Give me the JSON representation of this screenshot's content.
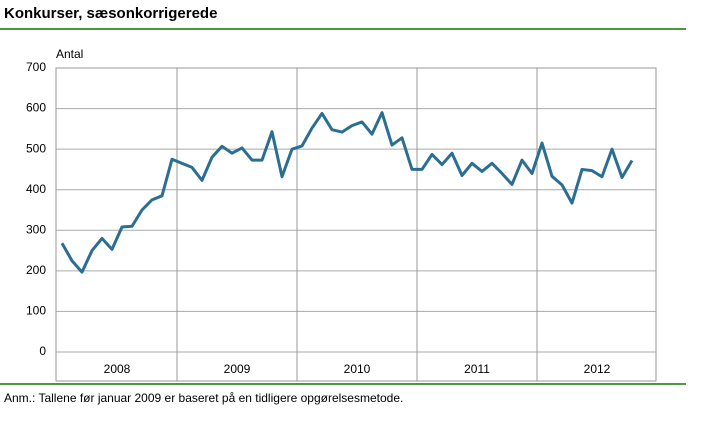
{
  "chart_data": {
    "type": "line",
    "title": "Konkurser, sæsonkorrigerede",
    "y_label": "Antal",
    "note": "Anm.: Tallene før januar 2009 er baseret på en tidligere opgørelsesmetode.",
    "categories": [
      null,
      null,
      null,
      null,
      null,
      null,
      null,
      null,
      null,
      null,
      null,
      null,
      null,
      null,
      null,
      null,
      null,
      null,
      null,
      null,
      null,
      null,
      null,
      null,
      null,
      null,
      null,
      null,
      null,
      null,
      null,
      null,
      null,
      null,
      null,
      null,
      null,
      null,
      null,
      null,
      null,
      null,
      null,
      null,
      null,
      null,
      null,
      null,
      null,
      null,
      null,
      null,
      null,
      null,
      null,
      null,
      null,
      null
    ],
    "xticks": [
      "2008",
      "2009",
      "2010",
      "2011",
      "2012"
    ],
    "series": [
      {
        "name": null,
        "color": "#2b6e93",
        "values": [
          268,
          225,
          197,
          250,
          280,
          253,
          308,
          310,
          350,
          375,
          385,
          475,
          465,
          455,
          423,
          480,
          507,
          490,
          503,
          473,
          473,
          543,
          432,
          500,
          508,
          552,
          588,
          548,
          542,
          558,
          567,
          537,
          590,
          510,
          528,
          450,
          450,
          487,
          462,
          490,
          435,
          465,
          445,
          465,
          440,
          413,
          473,
          440,
          515,
          433,
          412,
          367,
          450,
          447,
          432,
          500,
          430,
          472
        ]
      }
    ],
    "ylim": [
      0,
      700
    ],
    "yticks": [
      0,
      100,
      200,
      300,
      400,
      500,
      600,
      700
    ],
    "grid": true
  }
}
